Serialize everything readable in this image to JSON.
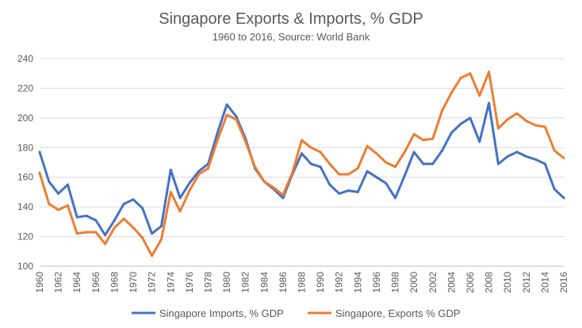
{
  "chart_data": {
    "type": "line",
    "title": "Singapore Exports & Imports, % GDP",
    "subtitle": "1960 to 2016, Source: World Bank",
    "xlabel": "",
    "ylabel": "",
    "ylim": [
      100,
      240
    ],
    "yticks": [
      "100",
      "120",
      "140",
      "160",
      "180",
      "200",
      "220",
      "240"
    ],
    "xtick_labels": [
      "1960",
      "1962",
      "1964",
      "1966",
      "1968",
      "1970",
      "1972",
      "1974",
      "1976",
      "1978",
      "1980",
      "1982",
      "1984",
      "1986",
      "1988",
      "1990",
      "1992",
      "1994",
      "1996",
      "1998",
      "2000",
      "2002",
      "2004",
      "2006",
      "2008",
      "2010",
      "2012",
      "2014",
      "2016"
    ],
    "grid": "horizontal",
    "legend_position": "bottom",
    "x": [
      1960,
      1961,
      1962,
      1963,
      1964,
      1965,
      1966,
      1967,
      1968,
      1969,
      1970,
      1971,
      1972,
      1973,
      1974,
      1975,
      1976,
      1977,
      1978,
      1979,
      1980,
      1981,
      1982,
      1983,
      1984,
      1985,
      1986,
      1987,
      1988,
      1989,
      1990,
      1991,
      1992,
      1993,
      1994,
      1995,
      1996,
      1997,
      1998,
      1999,
      2000,
      2001,
      2002,
      2003,
      2004,
      2005,
      2006,
      2007,
      2008,
      2009,
      2010,
      2011,
      2012,
      2013,
      2014,
      2015,
      2016
    ],
    "series": [
      {
        "name": "Singapore Imports, % GDP",
        "color": "#4472C4",
        "values": [
          177,
          157,
          149,
          155,
          133,
          134,
          131,
          121,
          131,
          142,
          145,
          139,
          122,
          127,
          165,
          146,
          156,
          164,
          169,
          190,
          209,
          201,
          186,
          166,
          157,
          152,
          146,
          162,
          176,
          169,
          167,
          155,
          149,
          151,
          150,
          164,
          160,
          156,
          146,
          161,
          177,
          169,
          169,
          178,
          190,
          196,
          200,
          184,
          210,
          169,
          174,
          177,
          174,
          172,
          169,
          152,
          146
        ]
      },
      {
        "name": "Singapore, Exports % GDP",
        "color": "#ED7D31",
        "values": [
          163,
          142,
          138,
          141,
          122,
          123,
          123,
          115,
          126,
          132,
          126,
          119,
          107,
          118,
          150,
          137,
          151,
          162,
          166,
          185,
          202,
          199,
          184,
          167,
          157,
          153,
          148,
          163,
          185,
          180,
          177,
          169,
          162,
          162,
          166,
          181,
          176,
          170,
          167,
          177,
          189,
          185,
          186,
          205,
          217,
          227,
          230,
          215,
          231,
          193,
          199,
          203,
          198,
          195,
          194,
          178,
          173
        ]
      }
    ]
  }
}
